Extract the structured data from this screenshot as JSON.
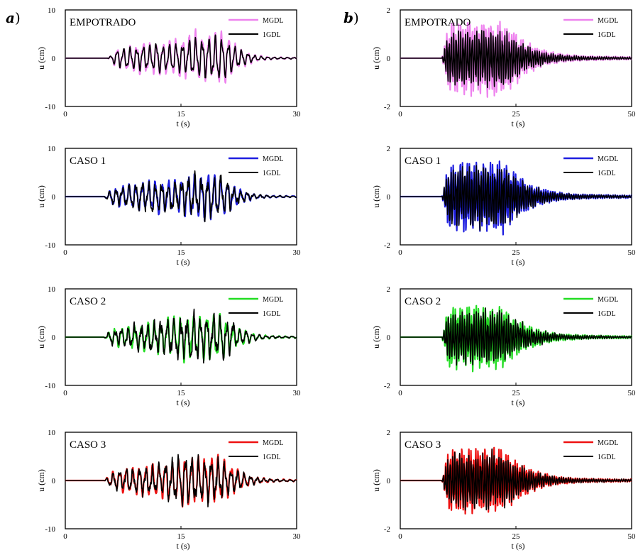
{
  "figure": {
    "panel_labels": {
      "a": {
        "letter": "a",
        "paren": ")"
      },
      "b": {
        "letter": "b",
        "paren": ")"
      }
    }
  },
  "chart_data": [
    {
      "id": "a-empotrado",
      "type": "line",
      "column": "a",
      "row": 0,
      "title": "EMPOTRADO",
      "xlabel": "t (s)",
      "ylabel": "u (cm)",
      "xlim": [
        0,
        30
      ],
      "ylim": [
        -10,
        10
      ],
      "xticks": [
        "0",
        "15",
        "30"
      ],
      "yticks": [
        "10",
        "0",
        "-10"
      ],
      "legend_position": "top-right",
      "signal": {
        "onset": 5.5,
        "end": 28,
        "peak_time": 19,
        "dominant_period": 0.85,
        "seed": 3
      },
      "series": [
        {
          "name": "MGDL",
          "color": "#ee82ee",
          "peak_amplitude": 4.8,
          "noise": 0.15
        },
        {
          "name": "1GDL",
          "color": "#000000",
          "peak_amplitude": 4.0,
          "noise": 0.1
        }
      ]
    },
    {
      "id": "a-caso1",
      "type": "line",
      "column": "a",
      "row": 1,
      "title": "CASO 1",
      "xlabel": "t (s)",
      "ylabel": "u (cm)",
      "xlim": [
        0,
        30
      ],
      "ylim": [
        -10,
        10
      ],
      "xticks": [
        "0",
        "15",
        "30"
      ],
      "yticks": [
        "10",
        "0",
        "-10"
      ],
      "legend_position": "top-right",
      "signal": {
        "onset": 5.0,
        "end": 28,
        "peak_time": 18.5,
        "dominant_period": 0.85,
        "seed": 7
      },
      "series": [
        {
          "name": "MGDL",
          "color": "#1f1fe0",
          "peak_amplitude": 4.3,
          "noise": 0.15
        },
        {
          "name": "1GDL",
          "color": "#000000",
          "peak_amplitude": 3.8,
          "noise": 0.3
        }
      ]
    },
    {
      "id": "a-caso2",
      "type": "line",
      "column": "a",
      "row": 2,
      "title": "CASO 2",
      "xlabel": "t (s)",
      "ylabel": "u (cm)",
      "xlim": [
        0,
        30
      ],
      "ylim": [
        -10,
        10
      ],
      "xticks": [
        "0",
        "15",
        "30"
      ],
      "yticks": [
        "10",
        "0",
        "-10"
      ],
      "legend_position": "top-right",
      "signal": {
        "onset": 5.0,
        "end": 30,
        "peak_time": 18.5,
        "dominant_period": 0.85,
        "seed": 11
      },
      "series": [
        {
          "name": "MGDL",
          "color": "#22dd22",
          "peak_amplitude": 4.3,
          "noise": 0.15
        },
        {
          "name": "1GDL",
          "color": "#000000",
          "peak_amplitude": 3.8,
          "noise": 0.35
        }
      ]
    },
    {
      "id": "a-caso3",
      "type": "line",
      "column": "a",
      "row": 3,
      "title": "CASO 3",
      "xlabel": "t (s)",
      "ylabel": "u (cm)",
      "xlim": [
        0,
        30
      ],
      "ylim": [
        -10,
        10
      ],
      "xticks": [
        "0",
        "15",
        "30"
      ],
      "yticks": [
        "10",
        "0",
        "-10"
      ],
      "legend_position": "top-right",
      "signal": {
        "onset": 5.0,
        "end": 30,
        "peak_time": 18.5,
        "dominant_period": 0.85,
        "seed": 19
      },
      "series": [
        {
          "name": "MGDL",
          "color": "#ee1111",
          "peak_amplitude": 4.6,
          "noise": 0.15
        },
        {
          "name": "1GDL",
          "color": "#000000",
          "peak_amplitude": 4.0,
          "noise": 0.3
        }
      ]
    },
    {
      "id": "b-empotrado",
      "type": "line",
      "column": "b",
      "row": 0,
      "title": "EMPOTRADO",
      "xlabel": "t (s)",
      "ylabel": "u (cm)",
      "xlim": [
        0,
        50
      ],
      "ylim": [
        -2,
        2
      ],
      "xticks": [
        "0",
        "25",
        "50"
      ],
      "yticks": [
        "2",
        "0",
        "-2"
      ],
      "legend_position": "top-right",
      "signal": {
        "onset": 9,
        "end": 50,
        "peak_time": 16,
        "dominant_period": 0.5,
        "seed": 23
      },
      "series": [
        {
          "name": "MGDL",
          "color": "#ee82ee",
          "peak_amplitude": 1.4,
          "noise": 0.1
        },
        {
          "name": "1GDL",
          "color": "#000000",
          "peak_amplitude": 1.05,
          "noise": 0.1
        }
      ]
    },
    {
      "id": "b-caso1",
      "type": "line",
      "column": "b",
      "row": 1,
      "title": "CASO 1",
      "xlabel": "t (s)",
      "ylabel": "u (cm)",
      "xlim": [
        0,
        50
      ],
      "ylim": [
        -2,
        2
      ],
      "xticks": [
        "0",
        "25",
        "50"
      ],
      "yticks": [
        "2",
        "0",
        "-2"
      ],
      "legend_position": "top-right",
      "signal": {
        "onset": 9,
        "end": 50,
        "peak_time": 16,
        "dominant_period": 0.5,
        "seed": 29
      },
      "series": [
        {
          "name": "MGDL",
          "color": "#1f1fe0",
          "peak_amplitude": 1.3,
          "noise": 0.1
        },
        {
          "name": "1GDL",
          "color": "#000000",
          "peak_amplitude": 1.05,
          "noise": 0.2
        }
      ]
    },
    {
      "id": "b-caso2",
      "type": "line",
      "column": "b",
      "row": 2,
      "title": "CASO 2",
      "xlabel": "t (s)",
      "ylabel": "u (cm)",
      "xlim": [
        0,
        50
      ],
      "ylim": [
        -2,
        2
      ],
      "xticks": [
        "0",
        "25",
        "50"
      ],
      "yticks": [
        "2",
        "0",
        "-2"
      ],
      "legend_position": "top-right",
      "signal": {
        "onset": 9,
        "end": 50,
        "peak_time": 15.5,
        "dominant_period": 0.5,
        "seed": 31
      },
      "series": [
        {
          "name": "MGDL",
          "color": "#22dd22",
          "peak_amplitude": 1.15,
          "noise": 0.1
        },
        {
          "name": "1GDL",
          "color": "#000000",
          "peak_amplitude": 0.95,
          "noise": 0.2
        }
      ]
    },
    {
      "id": "b-caso3",
      "type": "line",
      "column": "b",
      "row": 3,
      "title": "CASO 3",
      "xlabel": "t (s)",
      "ylabel": "u (cm)",
      "xlim": [
        0,
        50
      ],
      "ylim": [
        -2,
        2
      ],
      "xticks": [
        "0",
        "25",
        "50"
      ],
      "yticks": [
        "2",
        "0",
        "-2"
      ],
      "legend_position": "top-right",
      "signal": {
        "onset": 9,
        "end": 50,
        "peak_time": 15.5,
        "dominant_period": 0.5,
        "seed": 37
      },
      "series": [
        {
          "name": "MGDL",
          "color": "#ee1111",
          "peak_amplitude": 1.2,
          "noise": 0.1
        },
        {
          "name": "1GDL",
          "color": "#000000",
          "peak_amplitude": 1.0,
          "noise": 0.2
        }
      ]
    }
  ]
}
